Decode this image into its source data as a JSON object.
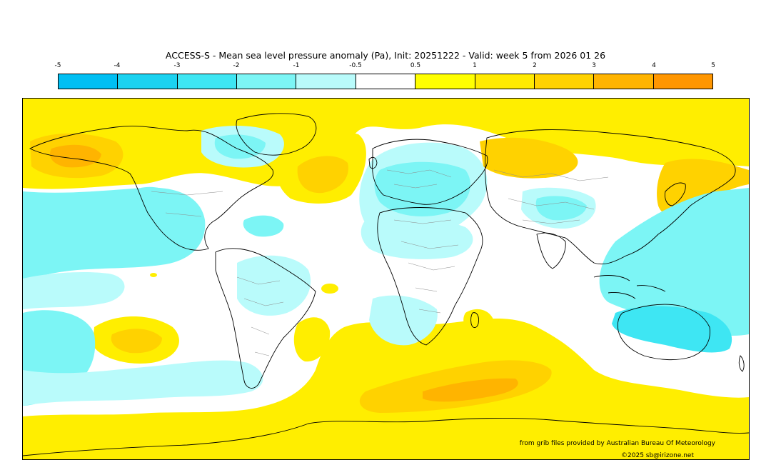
{
  "title": "ACCESS-S - Mean sea level pressure anomaly (Pa), Init: 20251222 - Valid: week 5 from 2026 01 26",
  "colorbar": {
    "ticks": [
      "-5",
      "-4",
      "-3",
      "-2",
      "-1",
      "-0.5",
      "0.5",
      "1",
      "2",
      "3",
      "4",
      "5"
    ],
    "colors": [
      "#00bff3",
      "#1bd2f0",
      "#3ee6f3",
      "#7cf5f5",
      "#b9fbfb",
      "#ffffff",
      "#ffff00",
      "#ffea00",
      "#ffd200",
      "#ffb400",
      "#ff9600"
    ]
  },
  "colors": {
    "neg_strong": "#3ee6f3",
    "neg_mid": "#7cf5f5",
    "neg_weak": "#b9fbfb",
    "pos_weak": "#ffee00",
    "pos_mid": "#ffd200",
    "pos_strong": "#ffb400",
    "coast": "#000000",
    "border": "#8c8c8c"
  },
  "credit": "from grib files provided by Australian Bureau Of Meteorology",
  "copyright": "©2025 sb@irizone.net"
}
